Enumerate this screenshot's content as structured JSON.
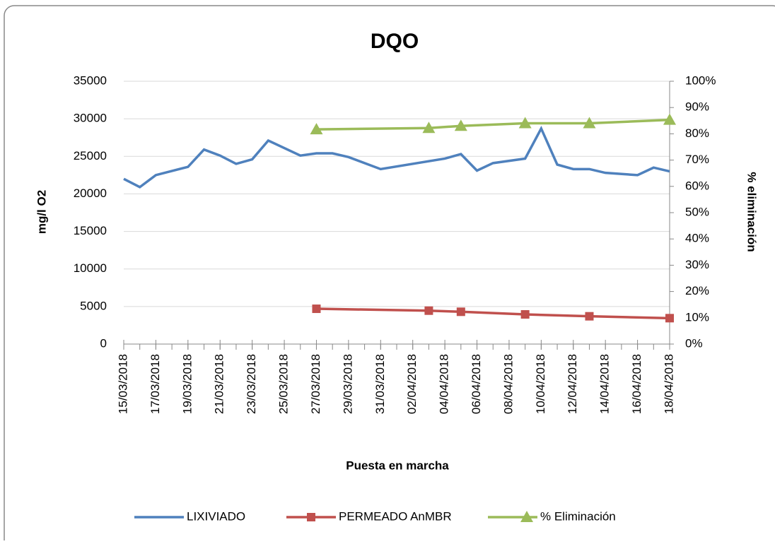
{
  "chart_data": {
    "type": "line",
    "title": "DQO",
    "x_label": "Puesta en marcha",
    "y_label": "mg/l O2",
    "y2_label": "% eliminación",
    "xlim": [
      "15/03/2018",
      "18/04/2018"
    ],
    "xticks": [
      "15/03/2018",
      "17/03/2018",
      "19/03/2018",
      "21/03/2018",
      "23/03/2018",
      "25/03/2018",
      "27/03/2018",
      "29/03/2018",
      "31/03/2018",
      "02/04/2018",
      "04/04/2018",
      "06/04/2018",
      "08/04/2018",
      "10/04/2018",
      "12/04/2018",
      "14/04/2018",
      "16/04/2018",
      "18/04/2018"
    ],
    "ylim": [
      0,
      35000
    ],
    "yticks": [
      0,
      5000,
      10000,
      15000,
      20000,
      25000,
      30000,
      35000
    ],
    "y2lim": [
      0,
      100
    ],
    "y2ticks": [
      {
        "value": 0,
        "label": "0%"
      },
      {
        "value": 10,
        "label": "10%"
      },
      {
        "value": 20,
        "label": "20%"
      },
      {
        "value": 30,
        "label": "30%"
      },
      {
        "value": 40,
        "label": "40%"
      },
      {
        "value": 50,
        "label": "50%"
      },
      {
        "value": 60,
        "label": "60%"
      },
      {
        "value": 70,
        "label": "70%"
      },
      {
        "value": 80,
        "label": "80%"
      },
      {
        "value": 90,
        "label": "90%"
      },
      {
        "value": 100,
        "label": "100%"
      }
    ],
    "grid": true,
    "legend": "bottom",
    "series": [
      {
        "name": "LIXIVIADO",
        "color": "#4f81bd",
        "marker": "none",
        "x": [
          "15/03/2018",
          "16/03/2018",
          "17/03/2018",
          "19/03/2018",
          "20/03/2018",
          "21/03/2018",
          "22/03/2018",
          "23/03/2018",
          "24/03/2018",
          "26/03/2018",
          "27/03/2018",
          "28/03/2018",
          "29/03/2018",
          "31/03/2018",
          "04/04/2018",
          "05/04/2018",
          "06/04/2018",
          "07/04/2018",
          "09/04/2018",
          "10/04/2018",
          "11/04/2018",
          "12/04/2018",
          "13/04/2018",
          "14/04/2018",
          "16/04/2018",
          "17/04/2018",
          "18/04/2018"
        ],
        "values": [
          22000,
          20900,
          22500,
          23600,
          25900,
          25100,
          24000,
          24600,
          27100,
          25100,
          25400,
          25400,
          24900,
          23300,
          24700,
          25300,
          23100,
          24100,
          24700,
          28700,
          23900,
          23300,
          23300,
          22800,
          22500,
          23500,
          23000
        ]
      },
      {
        "name": "PERMEADO AnMBR",
        "color": "#c0504d",
        "marker": "square",
        "x": [
          "27/03/2018",
          "03/04/2018",
          "05/04/2018",
          "09/04/2018",
          "13/04/2018",
          "18/04/2018"
        ],
        "values": [
          4700,
          4450,
          4300,
          3950,
          3700,
          3450
        ]
      },
      {
        "name": "% Eliminación",
        "color": "#9bbb59",
        "marker": "triangle",
        "axis": "y2",
        "x": [
          "27/03/2018",
          "03/04/2018",
          "05/04/2018",
          "09/04/2018",
          "13/04/2018",
          "18/04/2018"
        ],
        "values": [
          81.7,
          82.2,
          83,
          84,
          84,
          85.3
        ]
      }
    ]
  }
}
